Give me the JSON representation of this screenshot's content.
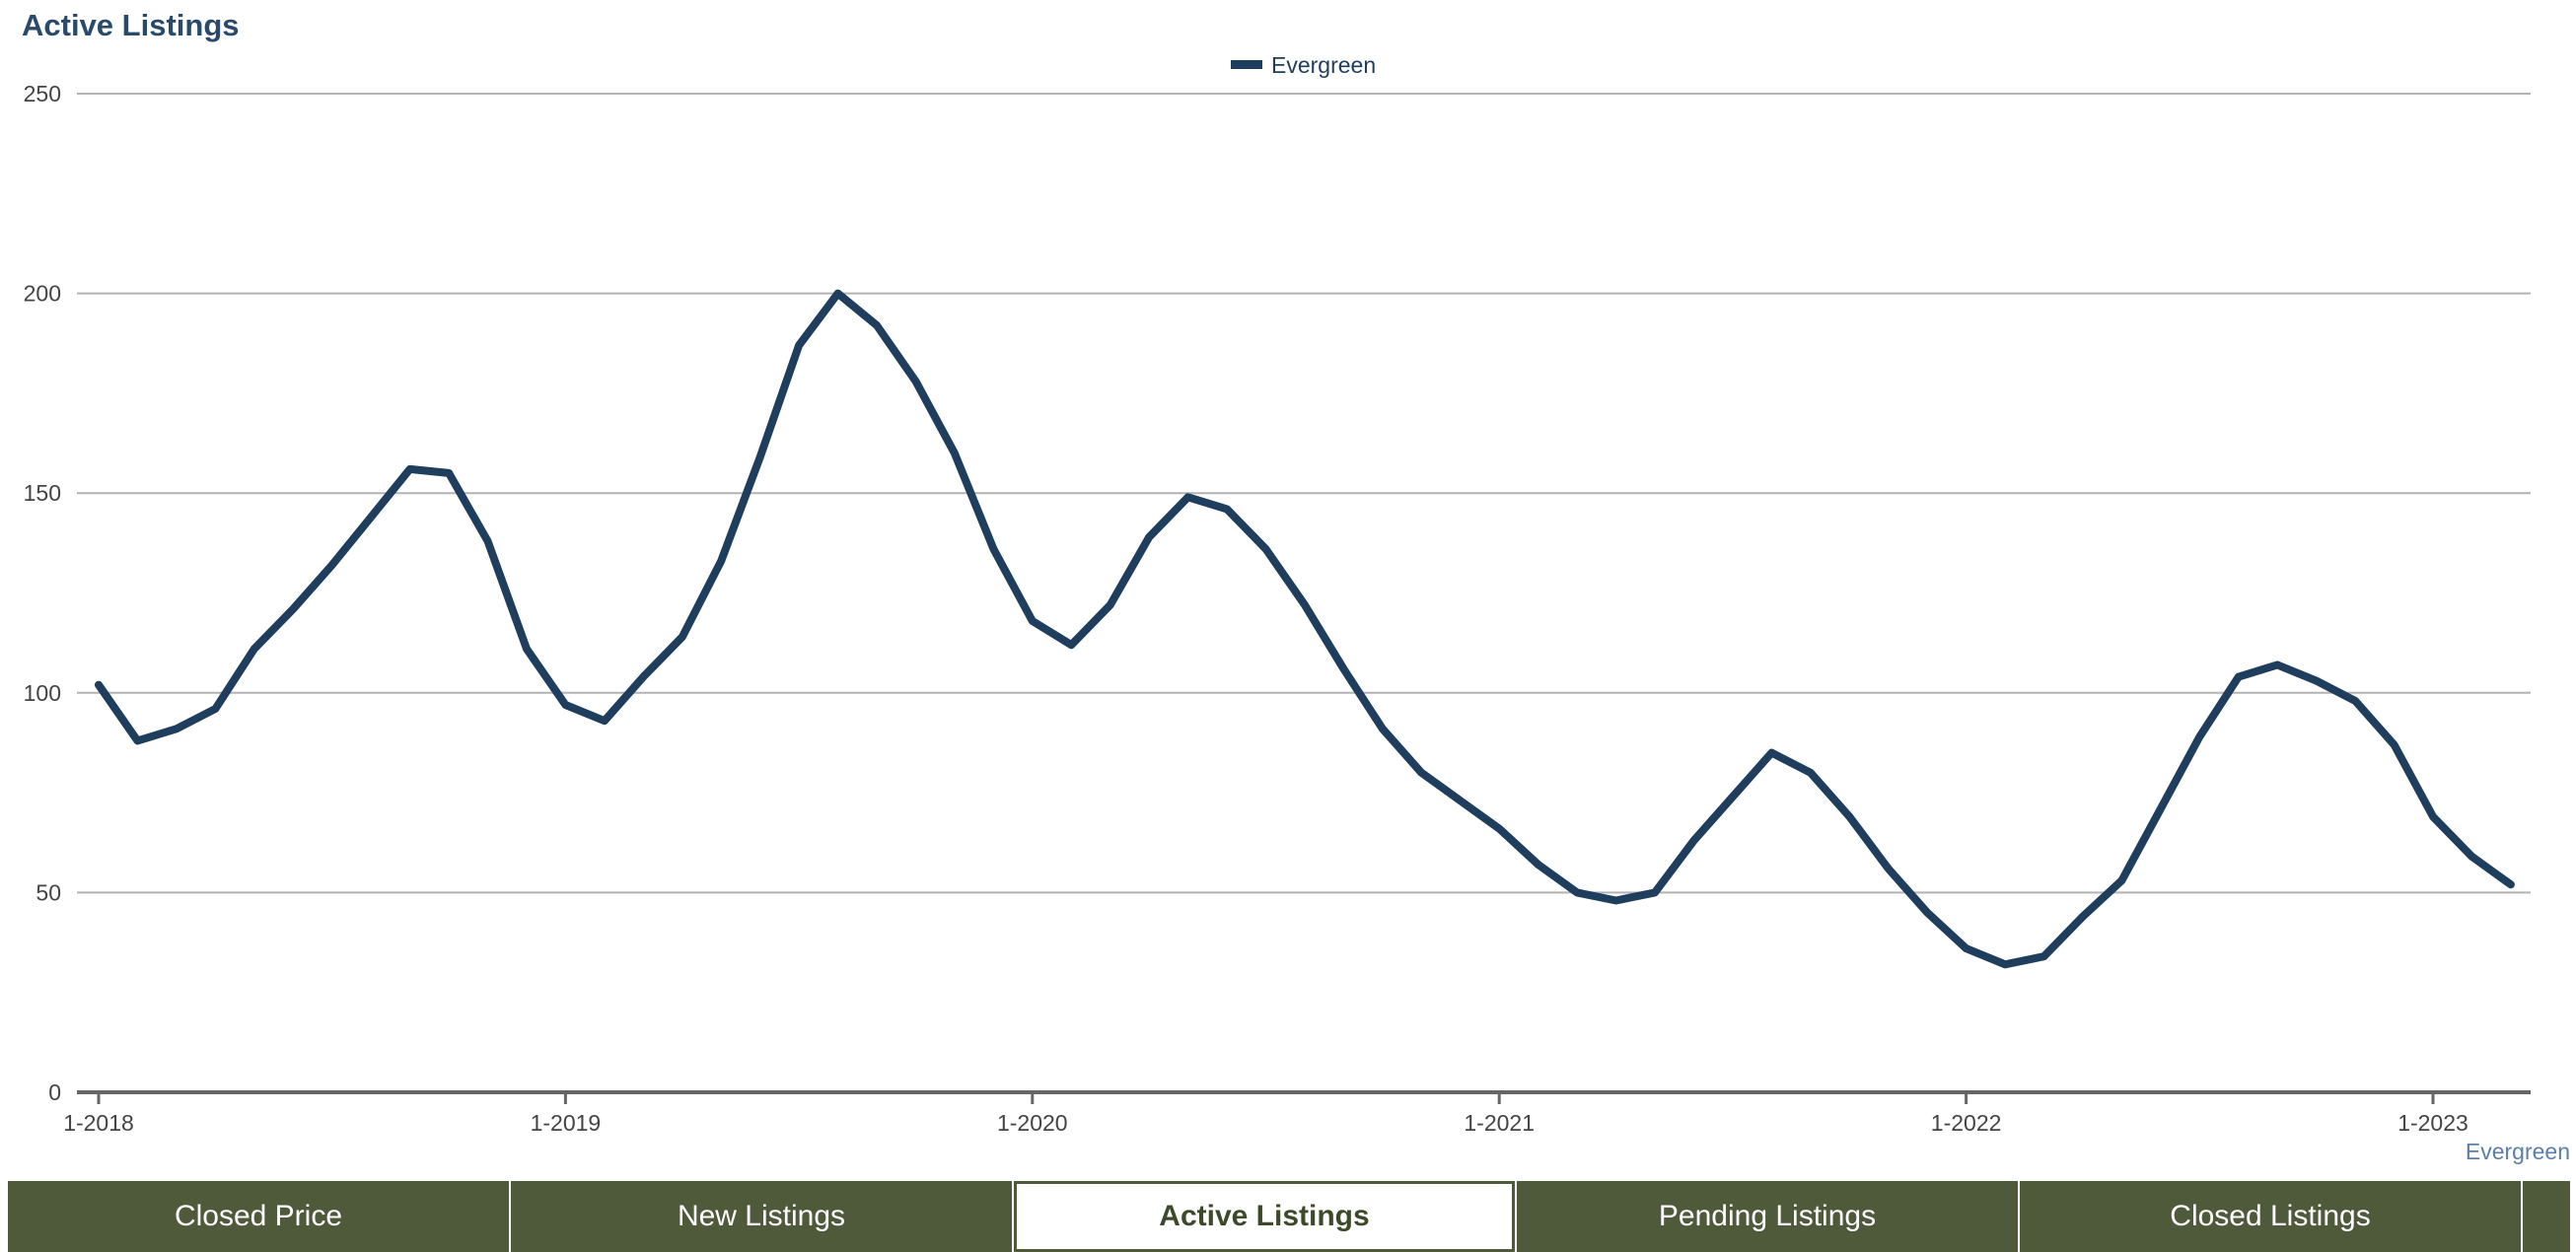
{
  "header": {
    "title": "Active Listings"
  },
  "tabs": [
    {
      "label": "Closed Price",
      "active": false
    },
    {
      "label": "New Listings",
      "active": false
    },
    {
      "label": "Active Listings",
      "active": true
    },
    {
      "label": "Pending Listings",
      "active": false
    },
    {
      "label": "Closed Listings",
      "active": false
    }
  ],
  "colors": {
    "series_line": "#1f3d5c",
    "tab_background": "#4f5a3a",
    "title": "#2a4a6b",
    "source_label": "#5a7fa8"
  },
  "chart_data": {
    "type": "line",
    "title": "Active Listings",
    "xlabel": "",
    "ylabel": "",
    "ylim": [
      0,
      250
    ],
    "yticks": [
      "0",
      "50",
      "100",
      "150",
      "200",
      "250"
    ],
    "xticks": [
      "1-2018",
      "1-2019",
      "1-2020",
      "1-2021",
      "1-2022",
      "1-2023"
    ],
    "x_start": "1-2018",
    "x_end": "3-2023",
    "grid": true,
    "legend": {
      "position": "top-center",
      "items": [
        "Evergreen"
      ]
    },
    "source_label": "Evergreen",
    "series": [
      {
        "name": "Evergreen",
        "x": [
          "1-2018",
          "2-2018",
          "3-2018",
          "4-2018",
          "5-2018",
          "6-2018",
          "7-2018",
          "8-2018",
          "9-2018",
          "10-2018",
          "11-2018",
          "12-2018",
          "1-2019",
          "2-2019",
          "3-2019",
          "4-2019",
          "5-2019",
          "6-2019",
          "7-2019",
          "8-2019",
          "9-2019",
          "10-2019",
          "11-2019",
          "12-2019",
          "1-2020",
          "2-2020",
          "3-2020",
          "4-2020",
          "5-2020",
          "6-2020",
          "7-2020",
          "8-2020",
          "9-2020",
          "10-2020",
          "11-2020",
          "12-2020",
          "1-2021",
          "2-2021",
          "3-2021",
          "4-2021",
          "5-2021",
          "6-2021",
          "7-2021",
          "8-2021",
          "9-2021",
          "10-2021",
          "11-2021",
          "12-2021",
          "1-2022",
          "2-2022",
          "3-2022",
          "4-2022",
          "5-2022",
          "6-2022",
          "7-2022",
          "8-2022",
          "9-2022",
          "10-2022",
          "11-2022",
          "12-2022",
          "1-2023",
          "2-2023",
          "3-2023"
        ],
        "values": [
          102,
          88,
          91,
          96,
          111,
          121,
          132,
          144,
          156,
          155,
          138,
          111,
          97,
          93,
          104,
          114,
          133,
          159,
          187,
          200,
          192,
          178,
          160,
          136,
          118,
          112,
          122,
          139,
          149,
          146,
          136,
          122,
          106,
          91,
          80,
          73,
          66,
          57,
          50,
          48,
          50,
          63,
          74,
          85,
          80,
          69,
          56,
          45,
          36,
          32,
          34,
          44,
          53,
          71,
          89,
          104,
          107,
          103,
          98,
          87,
          69,
          59,
          52
        ]
      }
    ]
  }
}
